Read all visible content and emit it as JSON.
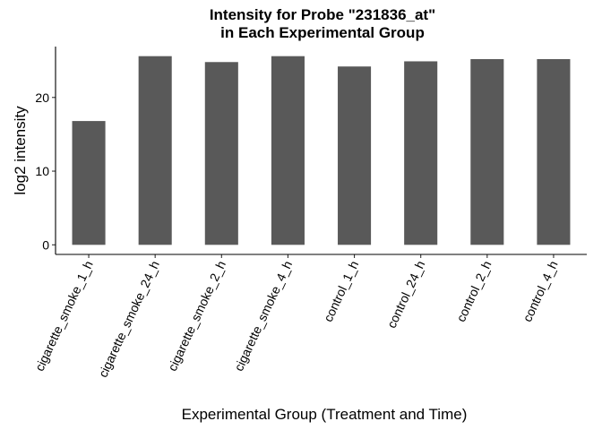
{
  "chart_data": {
    "type": "bar",
    "title_line1": "Intensity for Probe \"231836_at\"",
    "title_line2": "in Each Experimental Group",
    "xlabel": "Experimental Group (Treatment and Time)",
    "ylabel": "log2 intensity",
    "categories": [
      "cigarette_smoke_1_h",
      "cigarette_smoke_24_h",
      "cigarette_smoke_2_h",
      "cigarette_smoke_4_h",
      "control_1_h",
      "control_24_h",
      "control_2_h",
      "control_4_h"
    ],
    "values": [
      16.8,
      25.6,
      24.8,
      25.6,
      24.2,
      24.9,
      25.2,
      25.2
    ],
    "yticks": [
      0,
      10,
      20
    ],
    "ylim": [
      -1.3,
      26.9
    ],
    "bar_color": "#595959",
    "grid": false,
    "legend": "none"
  }
}
